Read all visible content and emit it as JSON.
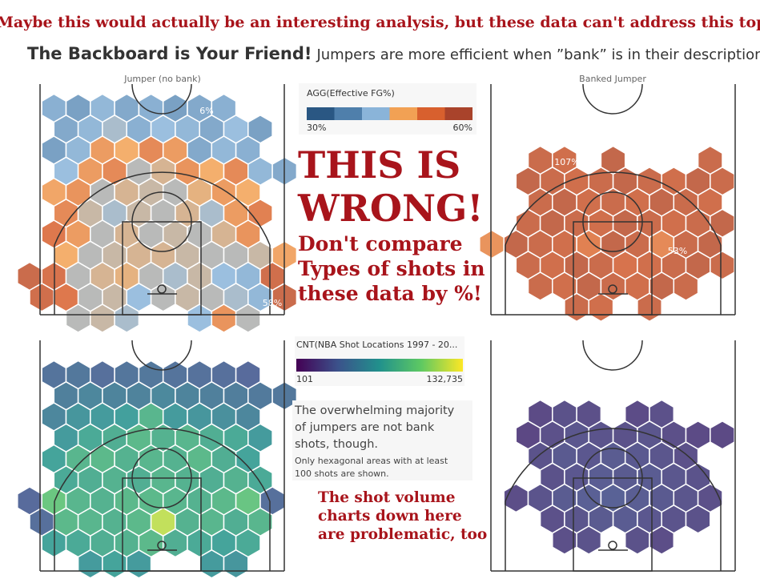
{
  "annotation_top": "Maybe this would actually be an interesting analysis, but these data can't address this topic",
  "title": "The Backboard is Your Friend!",
  "subtitle": "Jumpers are more efficient when ”bank” is in their description.",
  "big_warning": [
    "THIS IS",
    "WRONG!"
  ],
  "warning_detail": [
    "Don't compare",
    "Types of shots in",
    "these data by %!"
  ],
  "volume_warning": [
    "The shot volume",
    "charts down here",
    "are problematic, too"
  ],
  "note": [
    "The overwhelming majority",
    "of jumpers are not bank",
    "shots, though."
  ],
  "note_small": [
    "Only hexagonal areas with at least",
    "100 shots are shown."
  ],
  "fg_legend": {
    "title": "AGG(Effective FG%)",
    "colors": [
      "#2a5783",
      "#4f7fab",
      "#8ab4d9",
      "#f2a154",
      "#d8602e",
      "#a9432b"
    ],
    "ticks": [
      {
        "value": 30,
        "label": "30%"
      },
      {
        "value": 60,
        "label": "60%"
      }
    ]
  },
  "count_legend": {
    "title": "CNT(NBA Shot Locations 1997 - 20...",
    "colors": [
      "#440154",
      "#3b528b",
      "#21918c",
      "#5ec962",
      "#fde725"
    ],
    "ticks": [
      101,
      {
        "value": 132735,
        "label": "132,735"
      }
    ]
  },
  "hex_labels": [
    "6%",
    "58%",
    "107%",
    "53%"
  ],
  "panels": [
    {
      "title": "Jumper (no bank)",
      "measure": "fg",
      "hexes": [
        [
          null,
          40,
          38,
          41,
          39,
          40,
          38,
          39,
          40,
          null,
          null
        ],
        [
          null,
          39,
          41,
          43,
          40,
          42,
          41,
          39,
          42,
          38,
          null
        ],
        [
          null,
          38,
          41,
          50,
          48,
          52,
          50,
          39,
          41,
          40,
          null
        ],
        [
          null,
          42,
          50,
          52,
          44,
          46,
          51,
          48,
          52,
          41,
          39
        ],
        [
          null,
          49,
          51,
          44,
          46,
          45,
          44,
          47,
          50,
          48,
          null
        ],
        [
          null,
          52,
          45,
          43,
          45,
          44,
          46,
          43,
          50,
          53,
          null
        ],
        [
          null,
          54,
          50,
          44,
          46,
          44,
          45,
          44,
          46,
          51,
          null
        ],
        [
          null,
          48,
          44,
          45,
          46,
          46,
          45,
          44,
          44,
          45,
          49
        ],
        [
          57,
          55,
          44,
          46,
          47,
          44,
          43,
          45,
          42,
          41,
          56
        ],
        [
          56,
          54,
          44,
          45,
          42,
          44,
          45,
          44,
          43,
          41,
          57
        ],
        [
          null,
          null,
          44,
          45,
          43,
          null,
          null,
          42,
          51,
          44,
          null
        ]
      ]
    },
    {
      "title": "Banked Jumper",
      "measure": "fg",
      "hexes": [
        [
          null,
          null,
          57,
          56,
          null,
          58,
          null,
          null,
          null,
          57,
          null
        ],
        [
          null,
          58,
          57,
          56,
          57,
          58,
          57,
          56,
          58,
          57,
          null
        ],
        [
          null,
          null,
          57,
          58,
          56,
          57,
          56,
          58,
          57,
          56,
          null
        ],
        [
          null,
          57,
          58,
          57,
          56,
          58,
          57,
          56,
          57,
          58,
          null
        ],
        [
          51,
          58,
          57,
          56,
          53,
          58,
          57,
          52,
          57,
          58,
          null
        ],
        [
          null,
          57,
          56,
          58,
          57,
          55,
          56,
          57,
          58,
          57,
          null
        ],
        [
          null,
          null,
          57,
          56,
          58,
          57,
          56,
          58,
          57,
          null,
          null
        ],
        [
          null,
          null,
          null,
          57,
          56,
          null,
          57,
          null,
          null,
          null,
          null
        ]
      ]
    },
    {
      "measure": "count",
      "hexes": [
        [
          null,
          800,
          900,
          700,
          850,
          900,
          800,
          750,
          700,
          600,
          null
        ],
        [
          null,
          1200,
          1500,
          1400,
          1300,
          1600,
          1400,
          1200,
          1100,
          1000,
          900
        ],
        [
          null,
          1500,
          2500,
          3000,
          3500,
          8000,
          3000,
          2500,
          2000,
          1500,
          null
        ],
        [
          null,
          3000,
          5000,
          6000,
          9000,
          7000,
          8000,
          6000,
          5000,
          3000,
          null
        ],
        [
          null,
          4000,
          8000,
          9000,
          7000,
          8000,
          7000,
          9000,
          6000,
          4000,
          null
        ],
        [
          null,
          5000,
          6000,
          7000,
          6000,
          8000,
          7000,
          6000,
          7000,
          5000,
          null
        ],
        [
          600,
          15000,
          8000,
          7000,
          9000,
          9000,
          8000,
          7000,
          9000,
          14000,
          700
        ],
        [
          700,
          9000,
          8000,
          7000,
          9000,
          60000,
          7000,
          8000,
          6000,
          8000,
          null
        ],
        [
          null,
          4000,
          5000,
          6000,
          7000,
          9000,
          6000,
          5000,
          4000,
          5000,
          null
        ],
        [
          null,
          null,
          3000,
          4000,
          3000,
          null,
          null,
          3000,
          2500,
          null,
          null
        ]
      ]
    },
    {
      "measure": "count",
      "hexes": [
        [
          null,
          null,
          260,
          310,
          290,
          null,
          270,
          300,
          null,
          null,
          null
        ],
        [
          null,
          240,
          300,
          350,
          330,
          310,
          340,
          290,
          260,
          250,
          null
        ],
        [
          null,
          null,
          320,
          380,
          360,
          400,
          370,
          340,
          300,
          null,
          null
        ],
        [
          null,
          null,
          310,
          360,
          420,
          390,
          410,
          350,
          320,
          null,
          null
        ],
        [
          null,
          280,
          330,
          400,
          450,
          480,
          430,
          380,
          340,
          290,
          null
        ],
        [
          null,
          null,
          300,
          340,
          390,
          410,
          360,
          330,
          310,
          null,
          null
        ],
        [
          null,
          null,
          null,
          290,
          320,
          null,
          310,
          280,
          null,
          null,
          null
        ]
      ]
    }
  ]
}
